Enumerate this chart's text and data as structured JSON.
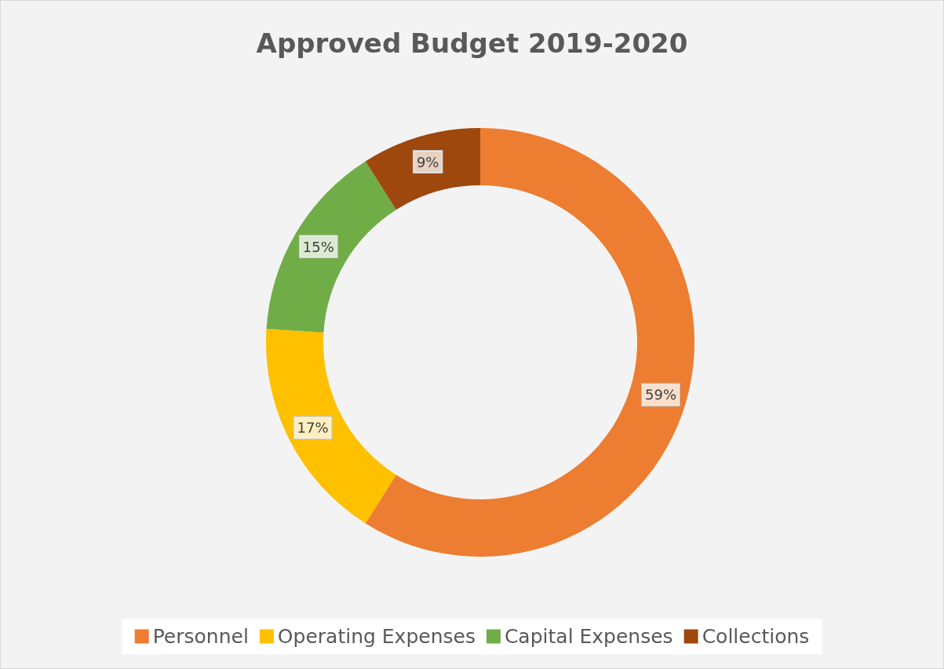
{
  "chart_data": {
    "type": "donut",
    "title": "Approved Budget 2019-2020",
    "categories": [
      "Personnel",
      "Operating Expenses",
      "Capital Expenses",
      "Collections"
    ],
    "values": [
      59,
      17,
      15,
      9
    ],
    "colors": [
      "#ed7d31",
      "#ffc000",
      "#70ad47",
      "#9e480e"
    ],
    "value_labels": [
      "59%",
      "17%",
      "15%",
      "9%"
    ],
    "legend": "bottom"
  }
}
